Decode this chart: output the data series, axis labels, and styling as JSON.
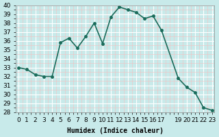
{
  "x": [
    0,
    1,
    2,
    3,
    4,
    5,
    6,
    7,
    8,
    9,
    10,
    11,
    12,
    13,
    14,
    15,
    16,
    17,
    19,
    20,
    21,
    22,
    23
  ],
  "y": [
    33,
    32.8,
    32.2,
    32,
    32,
    35.8,
    36.3,
    35.2,
    36.5,
    38,
    35.7,
    38.7,
    39.8,
    39.5,
    39.2,
    38.5,
    38.8,
    37.2,
    31.8,
    30.8,
    30.2,
    28.5,
    28.2
  ],
  "xlabel": "Humidex (Indice chaleur)",
  "ylim": [
    28,
    40
  ],
  "xlim_min": -0.3,
  "xlim_max": 23.3,
  "yticks": [
    28,
    29,
    30,
    31,
    32,
    33,
    34,
    35,
    36,
    37,
    38,
    39,
    40
  ],
  "xticks": [
    0,
    1,
    2,
    3,
    4,
    5,
    6,
    7,
    8,
    9,
    10,
    11,
    12,
    13,
    14,
    15,
    16,
    17,
    19,
    20,
    21,
    22,
    23
  ],
  "xtick_labels": [
    "0",
    "1",
    "2",
    "3",
    "4",
    "5",
    "6",
    "7",
    "8",
    "9",
    "10",
    "11",
    "12",
    "13",
    "14",
    "15",
    "16",
    "17",
    "19",
    "20",
    "21",
    "22",
    "23"
  ],
  "line_color": "#1a6b5a",
  "marker": "o",
  "marker_size": 3,
  "line_width": 1.2,
  "bg_color": "#c8eaea",
  "grid_color": "#ffffff",
  "grid_minor_color": "#f5c0c0",
  "label_fontsize": 7,
  "tick_fontsize": 6.5
}
